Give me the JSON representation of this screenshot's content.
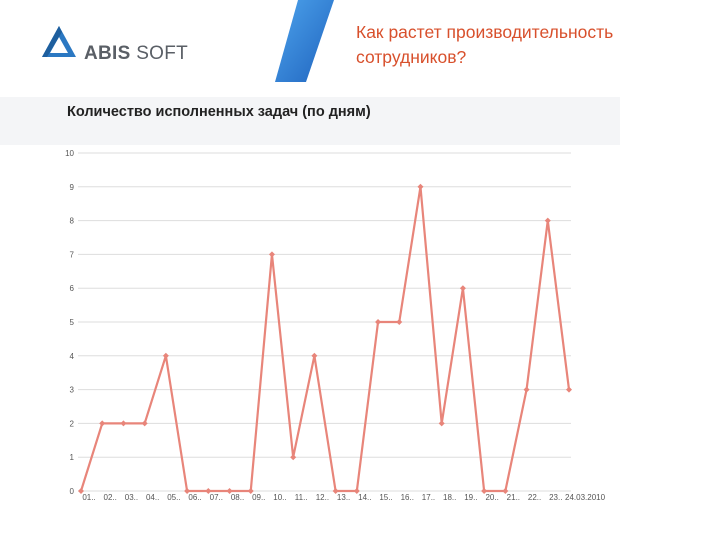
{
  "header": {
    "logo": {
      "brand_bold": "ABIS",
      "brand_light": "SOFT"
    },
    "title_line1": "Как растет производительность",
    "title_line2": "сотрудников?"
  },
  "colors": {
    "title": "#d8502c",
    "line": "#e8857a",
    "grid": "#dddddd",
    "logo_blue": "#2b78c2",
    "stripe_blue": "#2a76d2"
  },
  "chart_data": {
    "type": "line",
    "title": "Количество исполненных задач (по дням)",
    "ylim": [
      0,
      10
    ],
    "yticks": [
      0,
      1,
      2,
      3,
      4,
      5,
      6,
      7,
      8,
      9,
      10
    ],
    "grid": true,
    "categories": [
      "01..",
      "02..",
      "03..",
      "04..",
      "05..",
      "06..",
      "07..",
      "08..",
      "09..",
      "10..",
      "11..",
      "12..",
      "13..",
      "14..",
      "15..",
      "16..",
      "17..",
      "18..",
      "19..",
      "20..",
      "21..",
      "22..",
      "23..",
      "24.03.2010"
    ],
    "values": [
      0,
      2,
      2,
      2,
      4,
      0,
      0,
      0,
      0,
      7,
      1,
      4,
      0,
      0,
      5,
      5,
      9,
      2,
      6,
      0,
      0,
      3,
      8,
      3
    ]
  }
}
